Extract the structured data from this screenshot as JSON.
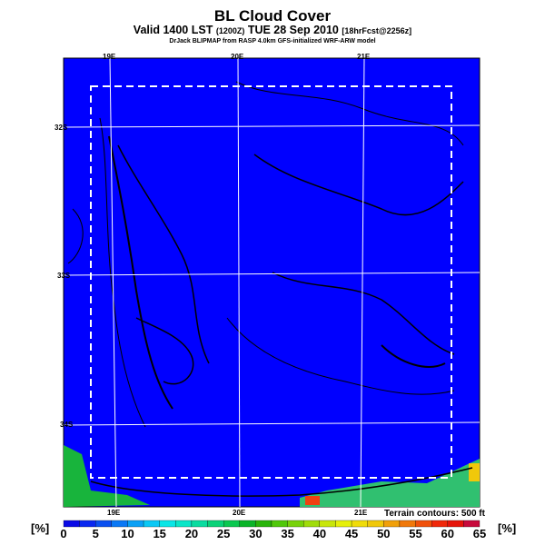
{
  "title": "BL Cloud Cover",
  "subtitle_main": "Valid 1400 LST",
  "subtitle_z": "(1200Z)",
  "subtitle_date": "TUE 28 Sep 2010",
  "subtitle_fcst": "[18hrFcst@2256z]",
  "credit": "DrJack BLIPMAP from RASP 4.0km GFS-initialized WRF-ARW model",
  "terrain_note": "Terrain contours: 500 ft",
  "unit_left": "[%]",
  "unit_right": "[%]",
  "colors": {
    "background": "#0000ff",
    "grid": "#ffffff",
    "box": "#ffffff"
  },
  "chart_data": {
    "type": "heatmap",
    "title": "BL Cloud Cover",
    "lon_labels_top": [
      "19E",
      "20E",
      "21E"
    ],
    "lon_labels_bottom": [
      "19E",
      "20E",
      "21E"
    ],
    "lat_labels": [
      "32S",
      "33S",
      "34S"
    ],
    "colorbar": {
      "min": 0,
      "max": 65,
      "step": 2.5,
      "tick_labels": [
        "0",
        "5",
        "10",
        "15",
        "20",
        "25",
        "30",
        "35",
        "40",
        "45",
        "50",
        "55",
        "60",
        "65"
      ],
      "colors": [
        "#0a0ae6",
        "#0a28f0",
        "#0a50f0",
        "#0a78f5",
        "#0aa0f5",
        "#0ac8f5",
        "#0ae6e6",
        "#0ae6c8",
        "#0adca0",
        "#0ad278",
        "#0ac850",
        "#0ab428",
        "#28b40a",
        "#50c80a",
        "#78d20a",
        "#a0dc0a",
        "#c8e60a",
        "#e6f00a",
        "#f0dc0a",
        "#f0c80a",
        "#f0a00a",
        "#f0780a",
        "#f0500a",
        "#f0280a",
        "#e6140a",
        "#c80a3c"
      ]
    },
    "note": "Mostly 0% cloud cover over domain; higher values along southern coast"
  }
}
